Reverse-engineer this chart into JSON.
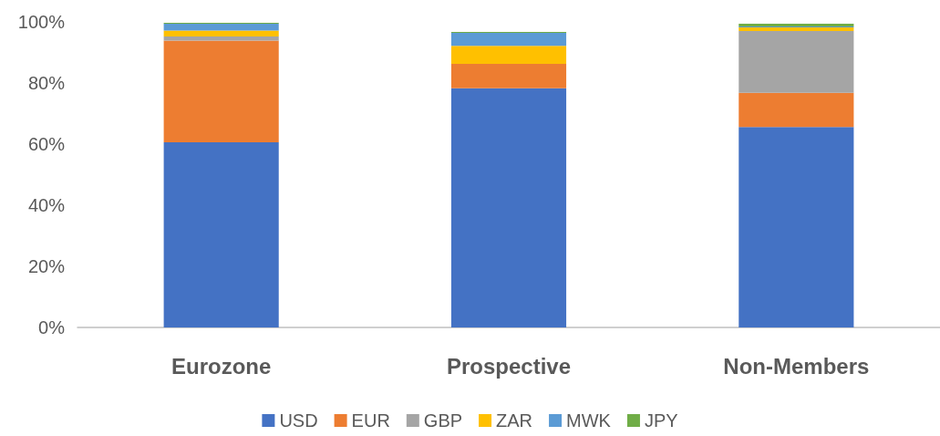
{
  "chart_data": {
    "type": "bar",
    "stacked": true,
    "categories": [
      "Eurozone",
      "Prospective",
      "Non-Members"
    ],
    "series": [
      {
        "name": "USD",
        "color": "#4472c4",
        "values": [
          60.6,
          78.3,
          65.6
        ]
      },
      {
        "name": "EUR",
        "color": "#ed7d31",
        "values": [
          33.3,
          8.0,
          11.2
        ]
      },
      {
        "name": "GBP",
        "color": "#a5a5a5",
        "values": [
          1.3,
          0,
          20.2
        ]
      },
      {
        "name": "ZAR",
        "color": "#ffc000",
        "values": [
          2.0,
          5.9,
          1.2
        ]
      },
      {
        "name": "MWK",
        "color": "#5b9bd5",
        "values": [
          2.2,
          4.2,
          0.3
        ]
      },
      {
        "name": "JPY",
        "color": "#70ad47",
        "values": [
          0.3,
          0.3,
          0.9
        ]
      }
    ],
    "ylim": [
      0,
      100
    ],
    "yticks": [
      {
        "value": 0,
        "label": "0%"
      },
      {
        "value": 20,
        "label": "20%"
      },
      {
        "value": 40,
        "label": "40%"
      },
      {
        "value": 60,
        "label": "60%"
      },
      {
        "value": 80,
        "label": "80%"
      },
      {
        "value": 100,
        "label": "100%"
      }
    ],
    "grid": false,
    "legend": "bottom"
  }
}
